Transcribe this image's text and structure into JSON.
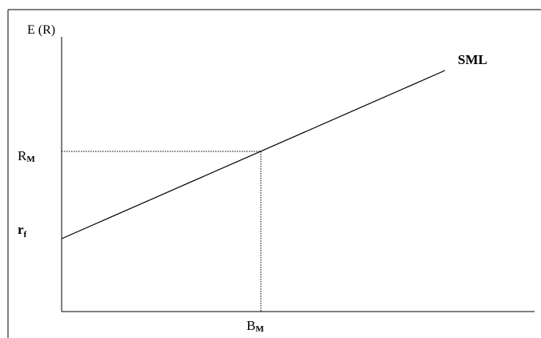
{
  "axis": {
    "y_label": "E (R)"
  },
  "line_label": "SML",
  "y_markers": [
    {
      "base": "R",
      "sub": "M"
    },
    {
      "base": "r",
      "sub": "f"
    }
  ],
  "x_marker": {
    "base": "B",
    "sub": "M"
  }
}
